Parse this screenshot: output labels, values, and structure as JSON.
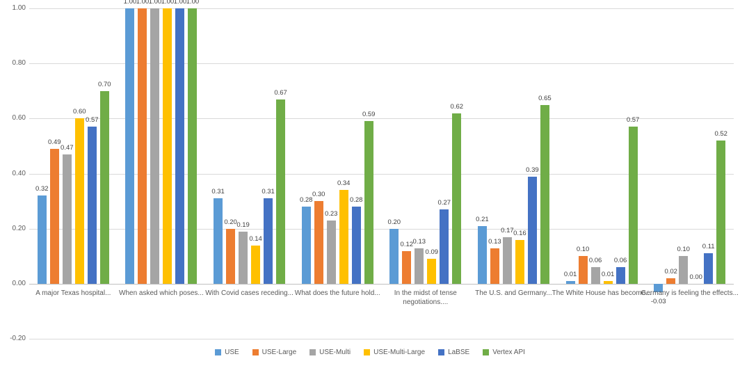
{
  "chart_data": {
    "type": "bar",
    "title": "",
    "xlabel": "",
    "ylabel": "",
    "ylim": [
      -0.2,
      1.0
    ],
    "grid": true,
    "legend_position": "bottom",
    "yticks": [
      "1.00",
      "0.80",
      "0.60",
      "0.40",
      "0.20",
      "0.00",
      "-0.20"
    ],
    "categories": [
      "A major Texas hospital...",
      "When asked which poses...",
      "With Covid cases receding...",
      "What does the future hold...",
      "In the midst of tense\nnegotiations....",
      "The U.S. and Germany...",
      "The White House has become...",
      "Germany is feeling the effects..."
    ],
    "series": [
      {
        "name": "USE",
        "color": "#5b9bd5",
        "values": [
          0.32,
          1.0,
          0.31,
          0.28,
          0.2,
          0.21,
          0.01,
          -0.03
        ]
      },
      {
        "name": "USE-Large",
        "color": "#ed7d31",
        "values": [
          0.49,
          1.0,
          0.2,
          0.3,
          0.12,
          0.13,
          0.1,
          0.02
        ]
      },
      {
        "name": "USE-Multi",
        "color": "#a5a5a5",
        "values": [
          0.47,
          1.0,
          0.19,
          0.23,
          0.13,
          0.17,
          0.06,
          0.1
        ]
      },
      {
        "name": "USE-Multi-Large",
        "color": "#ffc000",
        "values": [
          0.6,
          1.0,
          0.14,
          0.34,
          0.09,
          0.16,
          0.01,
          0.0
        ]
      },
      {
        "name": "LaBSE",
        "color": "#4472c4",
        "values": [
          0.57,
          1.0,
          0.31,
          0.28,
          0.27,
          0.39,
          0.06,
          0.11
        ]
      },
      {
        "name": "Vertex API",
        "color": "#70ad47",
        "values": [
          0.7,
          1.0,
          0.67,
          0.59,
          0.62,
          0.65,
          0.57,
          0.52
        ]
      }
    ],
    "colors": {
      "gridline": "#d9d9d9",
      "axis_line": "#bfbfbf",
      "tick_text": "#595959",
      "data_label_text": "#404040"
    }
  }
}
